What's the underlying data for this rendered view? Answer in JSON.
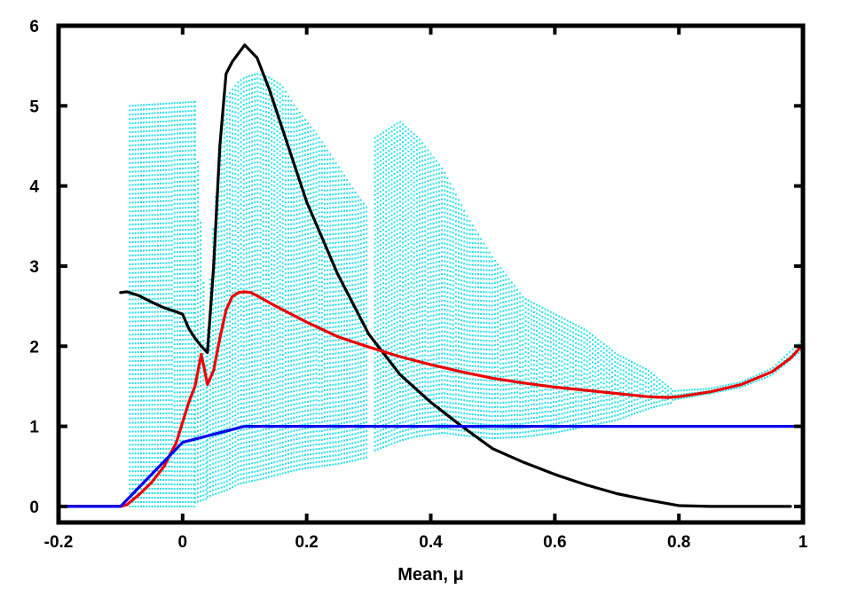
{
  "chart_data": {
    "type": "line",
    "title": "",
    "xlabel": "Mean, μ",
    "ylabel": "",
    "xlim": [
      -0.2,
      1.0
    ],
    "ylim": [
      -0.2,
      6.0
    ],
    "xticks": [
      -0.2,
      0,
      0.2,
      0.4,
      0.6,
      0.8,
      1
    ],
    "xtick_labels": [
      "-0.2",
      "0",
      "0.2",
      "0.4",
      "0.6",
      "0.8",
      "1"
    ],
    "yticks": [
      0,
      1,
      2,
      3,
      4,
      5,
      6
    ],
    "ytick_labels": [
      "0",
      "1",
      "2",
      "3",
      "4",
      "5",
      "6"
    ],
    "grid": false,
    "legend": "none",
    "series": [
      {
        "color": "#000000",
        "x": [
          -0.1,
          -0.09,
          -0.07,
          -0.05,
          -0.03,
          -0.01,
          0.0,
          0.01,
          0.02,
          0.03,
          0.04,
          0.05,
          0.06,
          0.07,
          0.08,
          0.1,
          0.12,
          0.14,
          0.17,
          0.2,
          0.25,
          0.3,
          0.35,
          0.4,
          0.45,
          0.5,
          0.55,
          0.6,
          0.65,
          0.7,
          0.75,
          0.8,
          0.85,
          0.9,
          0.98
        ],
        "y": [
          2.67,
          2.68,
          2.63,
          2.55,
          2.48,
          2.43,
          2.4,
          2.22,
          2.1,
          2.0,
          1.92,
          3.0,
          4.5,
          5.4,
          5.55,
          5.76,
          5.6,
          5.2,
          4.5,
          3.8,
          2.9,
          2.15,
          1.65,
          1.3,
          1.0,
          0.72,
          0.55,
          0.4,
          0.27,
          0.16,
          0.08,
          0.01,
          0.0,
          0.0,
          0.0
        ]
      },
      {
        "color": "#ee0000",
        "x": [
          -0.2,
          -0.1,
          -0.09,
          -0.07,
          -0.05,
          -0.03,
          -0.01,
          0.0,
          0.01,
          0.02,
          0.03,
          0.035,
          0.04,
          0.05,
          0.06,
          0.07,
          0.08,
          0.09,
          0.1,
          0.11,
          0.12,
          0.15,
          0.2,
          0.25,
          0.3,
          0.35,
          0.4,
          0.45,
          0.5,
          0.55,
          0.6,
          0.65,
          0.7,
          0.75,
          0.78,
          0.8,
          0.85,
          0.9,
          0.95,
          0.98,
          1.0
        ],
        "y": [
          0.0,
          0.0,
          0.02,
          0.15,
          0.3,
          0.5,
          0.8,
          1.05,
          1.3,
          1.5,
          1.9,
          1.72,
          1.52,
          1.7,
          2.1,
          2.45,
          2.62,
          2.67,
          2.68,
          2.67,
          2.63,
          2.5,
          2.3,
          2.12,
          1.99,
          1.87,
          1.77,
          1.68,
          1.6,
          1.54,
          1.49,
          1.45,
          1.41,
          1.37,
          1.36,
          1.37,
          1.43,
          1.52,
          1.68,
          1.85,
          2.02
        ]
      },
      {
        "color": "#0000ee",
        "x": [
          -0.2,
          -0.1,
          -0.05,
          0.0,
          0.05,
          0.1,
          0.2,
          0.4,
          0.6,
          0.8,
          1.0
        ],
        "y": [
          0.0,
          0.0,
          0.4,
          0.8,
          0.9,
          1.0,
          1.0,
          1.0,
          1.0,
          1.0,
          1.0
        ]
      }
    ],
    "scatter_series": [
      {
        "color": "#22e0e8",
        "bands": [
          {
            "x": [
              -0.085,
              0.02
            ],
            "low": [
              0.0,
              0.0
            ],
            "high": [
              5.0,
              5.05
            ]
          },
          {
            "x": [
              0.02,
              0.04
            ],
            "low": [
              0.05,
              0.1
            ],
            "high": [
              5.05,
              1.7
            ]
          },
          {
            "x": [
              0.04,
              0.05,
              0.07,
              0.09,
              0.1,
              0.12,
              0.14,
              0.16,
              0.18,
              0.2,
              0.22,
              0.25,
              0.28,
              0.3
            ],
            "low": [
              0.12,
              0.15,
              0.2,
              0.28,
              0.3,
              0.33,
              0.37,
              0.41,
              0.45,
              0.48,
              0.5,
              0.53,
              0.58,
              0.62
            ],
            "high": [
              2.2,
              3.6,
              5.1,
              5.3,
              5.35,
              5.4,
              5.35,
              5.25,
              5.0,
              4.8,
              4.6,
              4.25,
              3.9,
              3.7
            ]
          },
          {
            "x": [
              0.31,
              0.35,
              0.38,
              0.42,
              0.46,
              0.5,
              0.55,
              0.6,
              0.65,
              0.7,
              0.75,
              0.79
            ],
            "low": [
              0.7,
              0.82,
              0.88,
              0.92,
              0.88,
              0.85,
              0.87,
              0.92,
              1.0,
              1.08,
              1.22,
              1.3
            ],
            "high": [
              4.6,
              4.8,
              4.6,
              4.2,
              3.6,
              3.1,
              2.6,
              2.4,
              2.2,
              1.9,
              1.7,
              1.45
            ]
          },
          {
            "x": [
              0.79,
              0.85,
              0.9,
              0.95,
              1.0
            ],
            "low": [
              1.33,
              1.41,
              1.49,
              1.64,
              1.96
            ],
            "high": [
              1.44,
              1.47,
              1.55,
              1.72,
              2.08
            ]
          }
        ]
      }
    ]
  }
}
